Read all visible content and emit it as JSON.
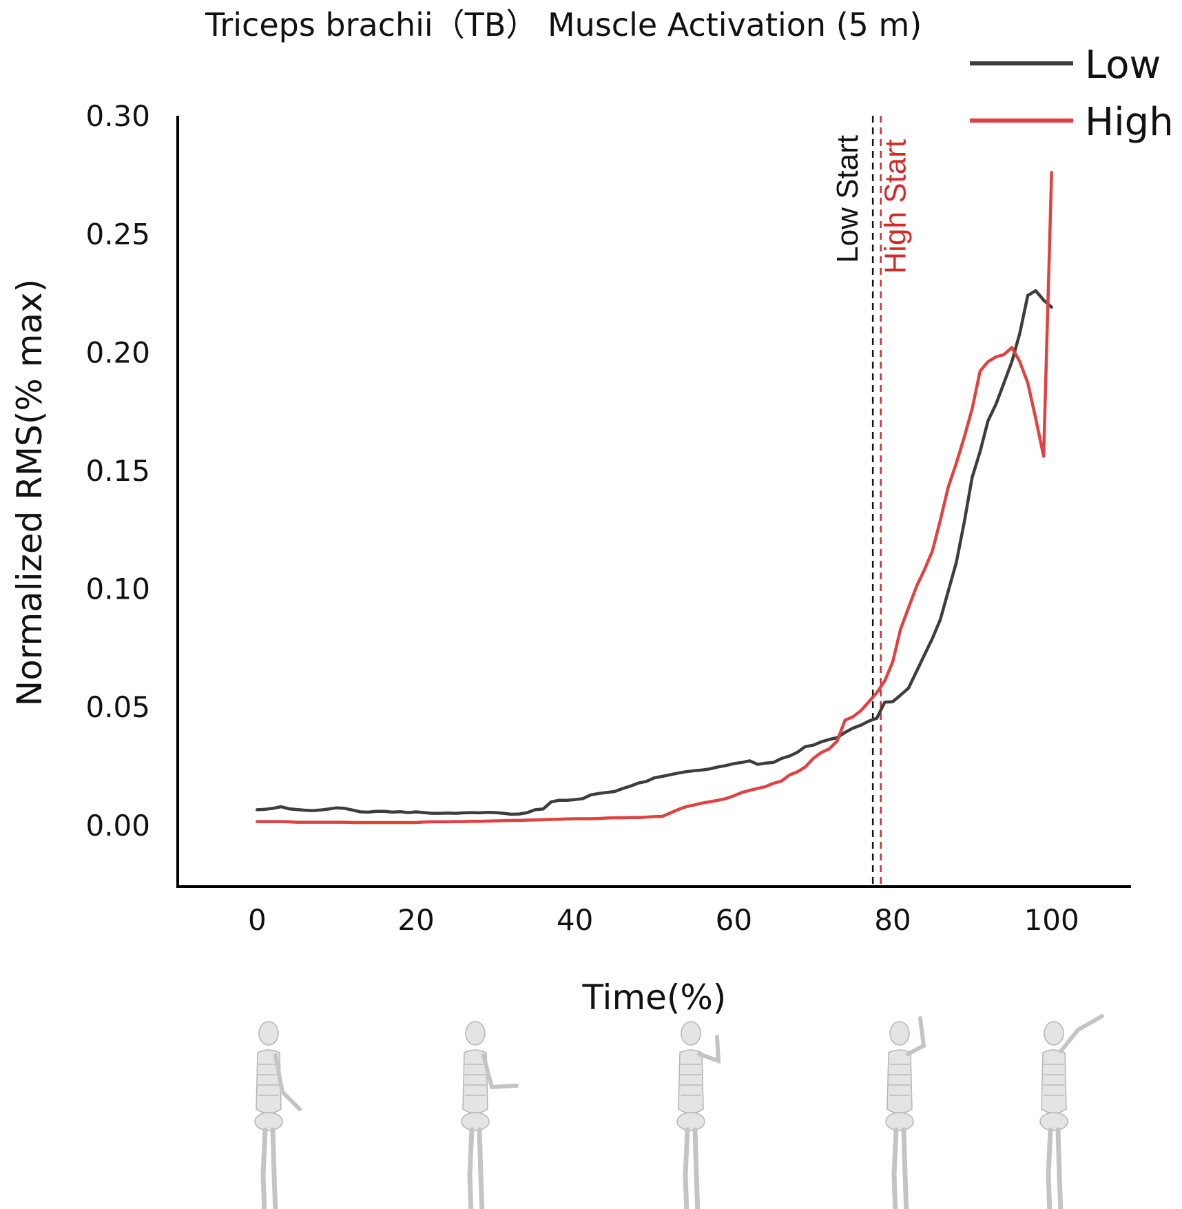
{
  "chart_data": {
    "type": "line",
    "title": "Triceps brachii（TB） Muscle Activation (5 m)",
    "xlabel": "Time(%)",
    "ylabel": "Normalized RMS(% max)",
    "xlim": [
      -10,
      110
    ],
    "ylim": [
      -0.026,
      0.3
    ],
    "xticks": [
      0,
      20,
      40,
      60,
      80,
      100
    ],
    "yticks": [
      0.0,
      0.05,
      0.1,
      0.15,
      0.2,
      0.25,
      0.3
    ],
    "xtick_labels": [
      "0",
      "20",
      "40",
      "60",
      "80",
      "100"
    ],
    "ytick_labels": [
      "0.00",
      "0.05",
      "0.10",
      "0.15",
      "0.20",
      "0.25",
      "0.30"
    ],
    "grid": false,
    "legend_position": "top-right",
    "series": [
      {
        "name": "Low",
        "color": "#3d3d3d",
        "x": [
          0,
          1,
          2,
          3,
          4,
          5,
          6,
          7,
          8,
          9,
          10,
          11,
          12,
          13,
          14,
          15,
          16,
          17,
          18,
          19,
          20,
          21,
          22,
          23,
          24,
          25,
          26,
          27,
          28,
          29,
          30,
          31,
          32,
          33,
          34,
          35,
          36,
          37,
          38,
          39,
          40,
          41,
          42,
          43,
          44,
          45,
          46,
          47,
          48,
          49,
          50,
          51,
          52,
          53,
          54,
          55,
          56,
          57,
          58,
          59,
          60,
          61,
          62,
          63,
          64,
          65,
          66,
          67,
          68,
          69,
          70,
          71,
          72,
          73,
          74,
          75,
          76,
          77,
          78,
          79,
          80,
          81,
          82,
          83,
          84,
          85,
          86,
          87,
          88,
          89,
          90,
          91,
          92,
          93,
          94,
          95,
          96,
          97,
          98,
          99,
          100
        ],
        "values": [
          0.0065,
          0.0067,
          0.0071,
          0.0078,
          0.0069,
          0.0066,
          0.0063,
          0.0061,
          0.0064,
          0.0068,
          0.0073,
          0.0071,
          0.0064,
          0.0056,
          0.0055,
          0.0058,
          0.0058,
          0.0055,
          0.0057,
          0.0053,
          0.0056,
          0.0053,
          0.005,
          0.005,
          0.0051,
          0.005,
          0.0052,
          0.0053,
          0.0052,
          0.0054,
          0.0053,
          0.005,
          0.0046,
          0.0047,
          0.0053,
          0.0065,
          0.0068,
          0.0098,
          0.0105,
          0.0105,
          0.0108,
          0.0112,
          0.0128,
          0.0134,
          0.0138,
          0.0142,
          0.0155,
          0.0165,
          0.0178,
          0.0185,
          0.02,
          0.0206,
          0.0213,
          0.022,
          0.0226,
          0.023,
          0.0233,
          0.0238,
          0.0246,
          0.0252,
          0.026,
          0.0265,
          0.0272,
          0.0257,
          0.0262,
          0.0265,
          0.0282,
          0.0292,
          0.0308,
          0.0332,
          0.0338,
          0.0352,
          0.0362,
          0.037,
          0.0392,
          0.041,
          0.0423,
          0.044,
          0.0452,
          0.052,
          0.0522,
          0.055,
          0.058,
          0.065,
          0.072,
          0.079,
          0.087,
          0.099,
          0.111,
          0.128,
          0.147,
          0.158,
          0.171,
          0.178,
          0.187,
          0.196,
          0.208,
          0.224,
          0.226,
          0.222,
          0.219
        ]
      },
      {
        "name": "High",
        "color": "#e04242",
        "x": [
          0,
          1,
          2,
          3,
          4,
          5,
          6,
          7,
          8,
          9,
          10,
          11,
          12,
          13,
          14,
          15,
          16,
          17,
          18,
          19,
          20,
          21,
          22,
          23,
          24,
          25,
          26,
          27,
          28,
          29,
          30,
          31,
          32,
          33,
          34,
          35,
          36,
          37,
          38,
          39,
          40,
          41,
          42,
          43,
          44,
          45,
          46,
          47,
          48,
          49,
          50,
          51,
          52,
          53,
          54,
          55,
          56,
          57,
          58,
          59,
          60,
          61,
          62,
          63,
          64,
          65,
          66,
          67,
          68,
          69,
          70,
          71,
          72,
          73,
          74,
          75,
          76,
          77,
          78,
          79,
          80,
          81,
          82,
          83,
          84,
          85,
          86,
          87,
          88,
          89,
          90,
          91,
          92,
          93,
          94,
          95,
          96,
          97,
          98,
          99,
          100
        ],
        "values": [
          0.0015,
          0.0015,
          0.0015,
          0.0015,
          0.0014,
          0.0012,
          0.0012,
          0.0012,
          0.0012,
          0.0012,
          0.0012,
          0.0012,
          0.0011,
          0.0011,
          0.0011,
          0.0011,
          0.0011,
          0.0011,
          0.0011,
          0.0011,
          0.0011,
          0.0013,
          0.0014,
          0.0014,
          0.0014,
          0.0015,
          0.0015,
          0.0016,
          0.0016,
          0.0017,
          0.0018,
          0.0019,
          0.002,
          0.002,
          0.0021,
          0.0022,
          0.0023,
          0.0024,
          0.0025,
          0.0026,
          0.0027,
          0.0027,
          0.0027,
          0.0028,
          0.003,
          0.0031,
          0.0031,
          0.0032,
          0.0032,
          0.0034,
          0.0036,
          0.0037,
          0.0051,
          0.0066,
          0.0078,
          0.0085,
          0.0093,
          0.0099,
          0.0105,
          0.0112,
          0.0124,
          0.0138,
          0.0147,
          0.0155,
          0.0163,
          0.0177,
          0.0186,
          0.0212,
          0.0225,
          0.0246,
          0.0282,
          0.0307,
          0.0322,
          0.0355,
          0.0444,
          0.0458,
          0.0484,
          0.0522,
          0.056,
          0.061,
          0.069,
          0.083,
          0.092,
          0.101,
          0.108,
          0.116,
          0.129,
          0.143,
          0.153,
          0.164,
          0.176,
          0.192,
          0.196,
          0.198,
          0.199,
          0.202,
          0.196,
          0.187,
          0.172,
          0.156,
          0.276
        ]
      }
    ],
    "vlines": [
      {
        "x": 77.5,
        "label": "Low Start",
        "color": "#111111",
        "style": "dashed"
      },
      {
        "x": 78.5,
        "label": "High Start",
        "color": "#d42a2a",
        "style": "dashed"
      }
    ]
  }
}
